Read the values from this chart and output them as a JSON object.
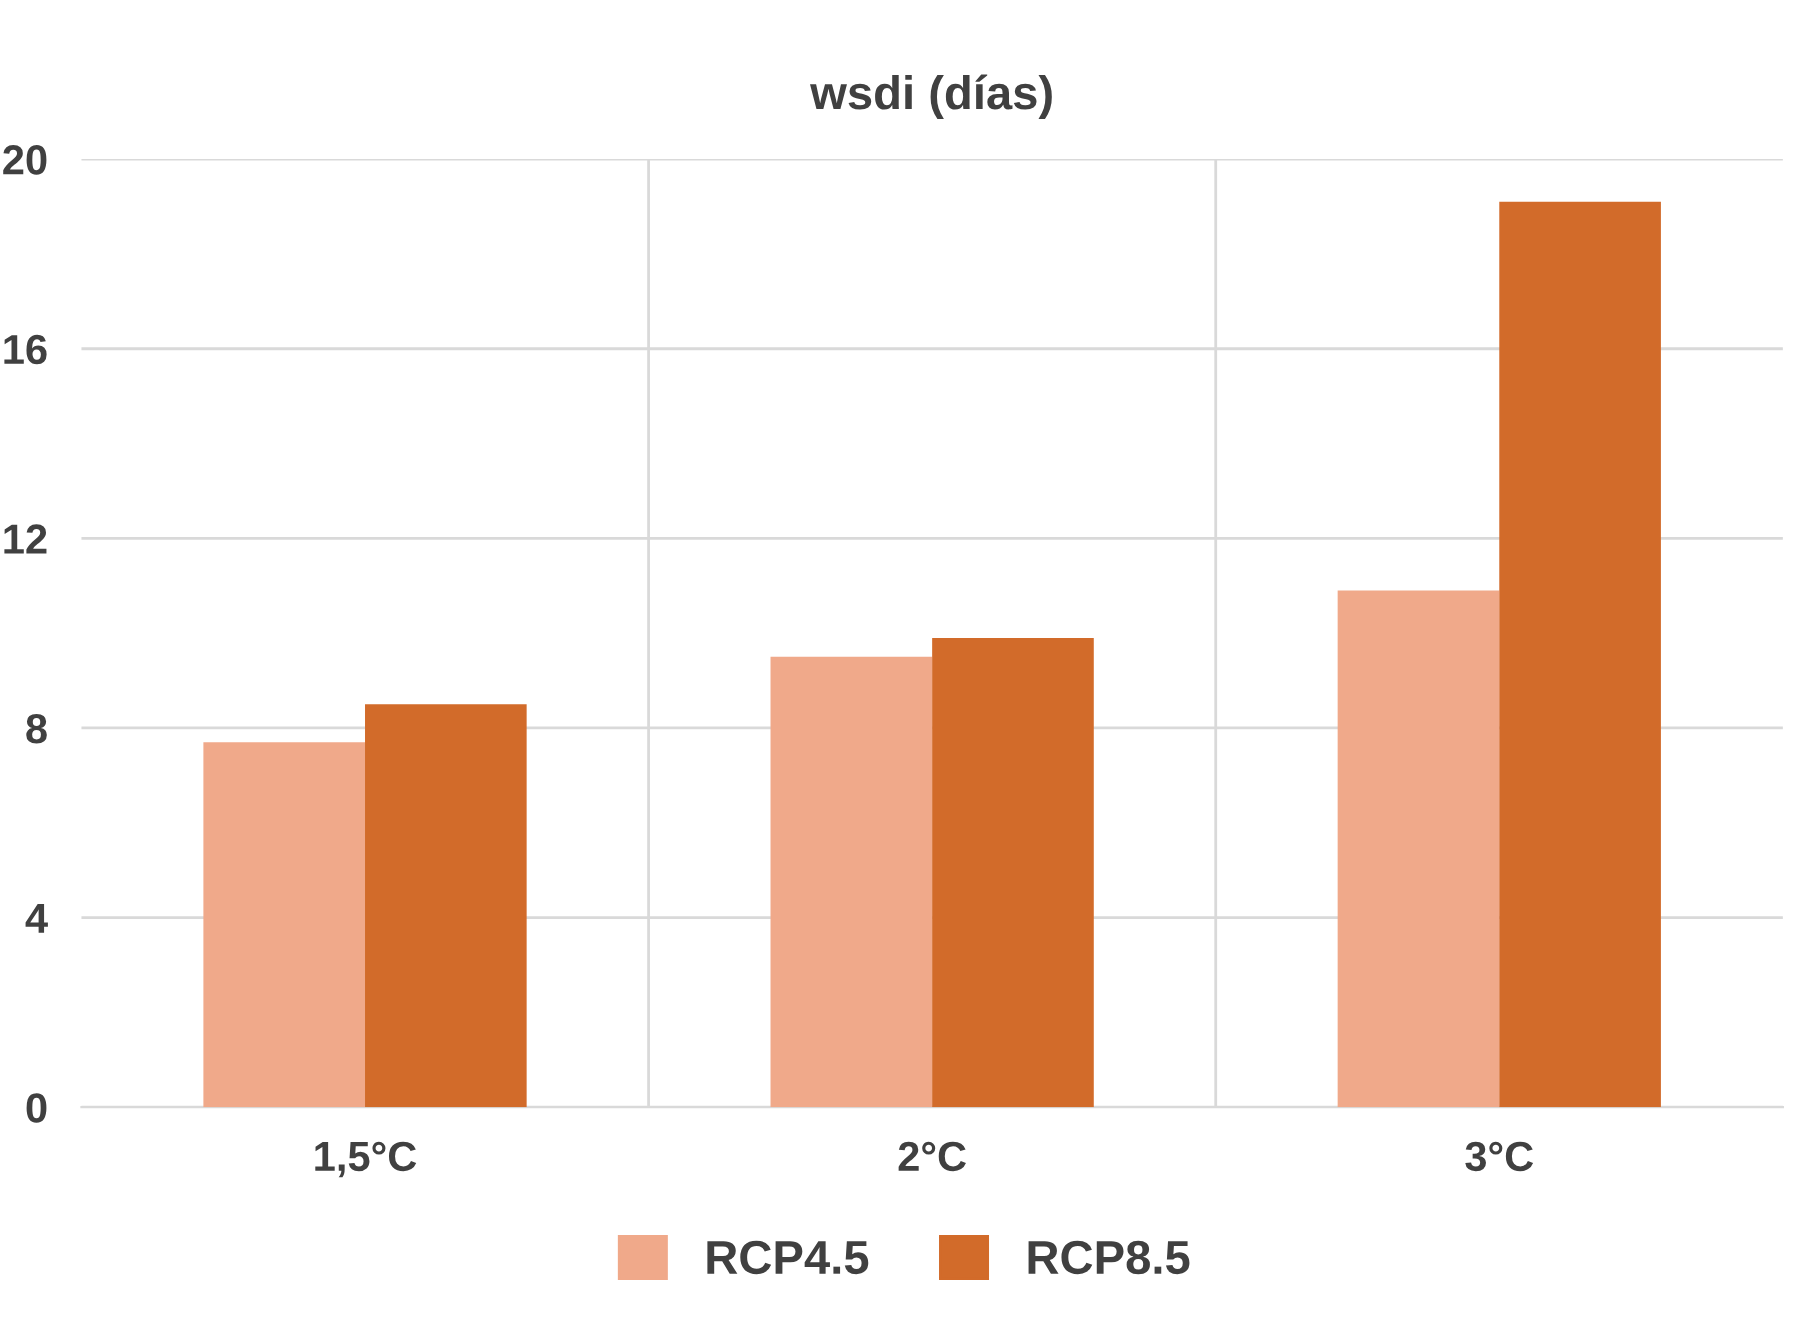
{
  "chart_data": {
    "type": "bar",
    "title": "wsdi (días)",
    "categories": [
      "1,5°C",
      "2°C",
      "3°C"
    ],
    "series": [
      {
        "name": "RCP4.5",
        "color": "#f0a98a",
        "values": [
          7.7,
          9.5,
          10.9
        ]
      },
      {
        "name": "RCP8.5",
        "color": "#d26b2a",
        "values": [
          8.5,
          9.9,
          19.1
        ]
      }
    ],
    "ylim": [
      0,
      20
    ],
    "yticks": [
      0,
      4,
      8,
      12,
      16,
      20
    ],
    "grid": true,
    "legend": "bottom"
  }
}
